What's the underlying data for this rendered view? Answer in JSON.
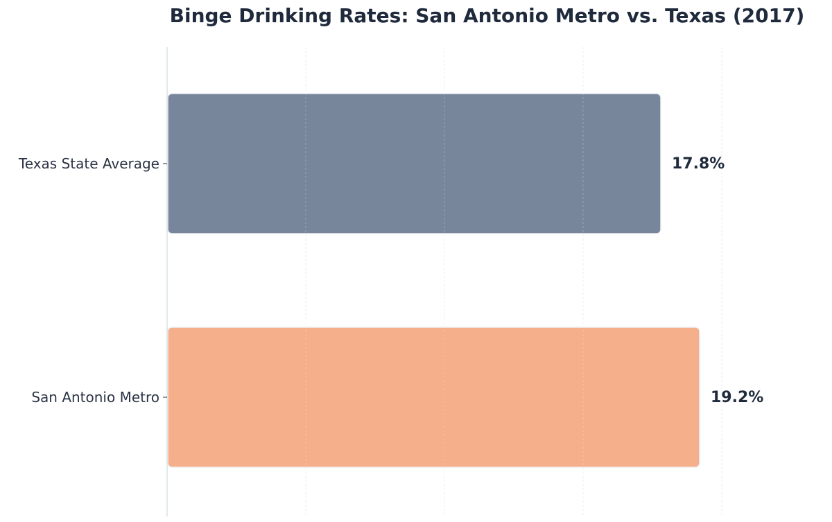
{
  "chart_data": {
    "type": "bar",
    "orientation": "horizontal",
    "title": "Binge Drinking Rates: San Antonio Metro vs. Texas (2017)",
    "xlabel": "",
    "ylabel": "",
    "categories": [
      "Texas State Average",
      "San Antonio Metro"
    ],
    "values": [
      17.8,
      19.2
    ],
    "value_labels": [
      "17.8%",
      "19.2%"
    ],
    "colors": [
      "#78869b",
      "#f5af8a"
    ],
    "xlim": [
      0,
      25
    ],
    "x_ticks": [
      5,
      10,
      15,
      20
    ],
    "grid": true,
    "legend": "none"
  }
}
